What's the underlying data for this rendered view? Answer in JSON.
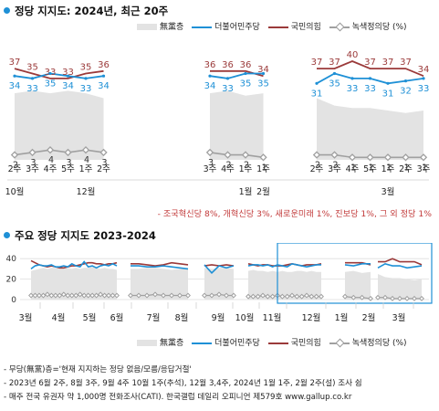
{
  "chart_data": [
    {
      "type": "line",
      "title": "정당 지지도: 2024년, 최근 20주",
      "legend": [
        {
          "name": "無黨층",
          "color": "#e3e3e3",
          "kind": "area"
        },
        {
          "name": "더불어민주당",
          "color": "#1e90d6",
          "kind": "line"
        },
        {
          "name": "국민의힘",
          "color": "#9b3a3a",
          "kind": "line"
        },
        {
          "name": "녹색정의당 (%)",
          "color": "#a0a0a0",
          "kind": "line-diamond"
        }
      ],
      "segments": [
        {
          "x_labels": [
            "2주",
            "3주",
            "4주",
            "5주",
            "1주",
            "2주"
          ],
          "month_labels": [
            {
              "at": 0,
              "text": "10월"
            },
            {
              "at": 4,
              "text": "12월"
            }
          ],
          "ppp": [
            37,
            35,
            33,
            33,
            35,
            36
          ],
          "dem": [
            34,
            33,
            35,
            34,
            33,
            34
          ],
          "green": [
            2,
            3,
            4,
            3,
            4,
            3
          ],
          "nopa": [
            27,
            28,
            27,
            28,
            27,
            25
          ]
        },
        {
          "x_labels": [
            "3주",
            "4주",
            "1주",
            "1주"
          ],
          "month_labels": [
            {
              "at": 2,
              "text": "1월"
            },
            {
              "at": 3,
              "text": "2월"
            }
          ],
          "ppp": [
            36,
            36,
            36,
            34
          ],
          "dem": [
            34,
            33,
            35,
            35
          ],
          "green": [
            3,
            2,
            2,
            1
          ],
          "nopa": [
            27,
            28,
            26,
            27
          ]
        },
        {
          "x_labels": [
            "2주",
            "3주",
            "4주",
            "5주",
            "1주",
            "2주",
            "3주"
          ],
          "month_labels": [
            {
              "at": 4,
              "text": "3월"
            }
          ],
          "ppp": [
            37,
            37,
            40,
            37,
            37,
            37,
            34
          ],
          "dem": [
            31,
            35,
            33,
            33,
            31,
            32,
            33
          ],
          "green": [
            2,
            2,
            1,
            1,
            1,
            1,
            1
          ],
          "nopa": [
            25,
            22,
            21,
            21,
            20,
            19,
            20
          ]
        }
      ],
      "all_x_labels": [
        "2주",
        "3주",
        "4주",
        "5주",
        "1주",
        "2주",
        "3주",
        "4주",
        "1주",
        "2주",
        "3주",
        "4주",
        "1주",
        "2주",
        "3주",
        "4주",
        "5주",
        "1주",
        "2주",
        "3주"
      ],
      "green_labels": [
        "2",
        "3",
        "4",
        "3",
        "4",
        "3",
        "3",
        "2",
        "2",
        "1",
        "2",
        "2",
        "1",
        "1",
        "1",
        "1",
        "1"
      ],
      "ylim": [
        0,
        50
      ],
      "note": "- 조국혁신당 8%, 개혁신당 3%, 새로운미래 1%, 진보당 1%, 그 외 정당 1%"
    },
    {
      "type": "line",
      "title": "주요 정당 지지도 2023-2024",
      "y_ticks": [
        0,
        20,
        40
      ],
      "ylim": [
        0,
        50
      ],
      "x_month_labels": [
        "3월",
        "4월",
        "5월",
        "6월",
        "7월",
        "8월",
        "9월",
        "10월",
        "11월",
        "12월",
        "1월",
        "2월",
        "3월"
      ],
      "segments": [
        {
          "ppp": [
            38,
            36,
            34,
            33,
            32,
            33,
            32,
            31,
            31,
            32,
            33,
            33,
            34,
            35,
            36,
            36,
            35,
            35,
            34,
            35,
            35,
            36
          ],
          "dem": [
            30,
            33,
            34,
            33,
            33,
            34,
            32,
            32,
            33,
            32,
            35,
            33,
            32,
            37,
            32,
            33,
            31,
            33,
            34,
            33,
            35,
            33
          ],
          "nopa": [
            28,
            29,
            30,
            31,
            30,
            31,
            31,
            30,
            31,
            31,
            30,
            31,
            30,
            31,
            31,
            32,
            31,
            30,
            31,
            30,
            30,
            29
          ],
          "green": [
            4,
            4,
            4,
            4,
            5,
            4,
            4,
            4,
            5,
            4,
            4,
            4,
            5,
            4,
            4,
            4,
            4,
            5,
            4,
            4,
            4,
            4
          ]
        },
        {
          "ppp": [
            35,
            35,
            34,
            33,
            34,
            36,
            35,
            34
          ],
          "dem": [
            33,
            33,
            32,
            32,
            33,
            32,
            31,
            30
          ],
          "nopa": [
            30,
            30,
            31,
            31,
            30,
            29,
            30,
            30
          ],
          "green": [
            4,
            4,
            4,
            5,
            4,
            4,
            4,
            4
          ]
        },
        {
          "ppp": [
            33,
            34,
            33,
            34,
            33
          ],
          "dem": [
            34,
            26,
            33,
            31,
            33
          ],
          "nopa": [
            31,
            30,
            31,
            31,
            30
          ],
          "green": [
            4,
            4,
            5,
            4,
            4
          ]
        },
        {
          "ppp": [
            35,
            34,
            33,
            34,
            34,
            33,
            33,
            33,
            34,
            35,
            34,
            33,
            34,
            34,
            34,
            35
          ],
          "dem": [
            33,
            34,
            34,
            33,
            34,
            32,
            34,
            33,
            32,
            35,
            34,
            33,
            32,
            33,
            34,
            34
          ],
          "nopa": [
            28,
            29,
            28,
            28,
            27,
            28,
            27,
            28,
            27,
            27,
            28,
            28,
            27,
            28,
            27,
            27
          ],
          "green": [
            3,
            3,
            3,
            4,
            3,
            3,
            4,
            3,
            3,
            4,
            3,
            3,
            4,
            3,
            3,
            3
          ]
        },
        {
          "ppp": [
            36,
            36,
            36,
            34
          ],
          "dem": [
            34,
            33,
            35,
            35
          ],
          "nopa": [
            27,
            28,
            26,
            27
          ],
          "green": [
            3,
            2,
            2,
            1
          ]
        },
        {
          "ppp": [
            37,
            37,
            40,
            37,
            37,
            37,
            34
          ],
          "dem": [
            31,
            35,
            33,
            33,
            31,
            32,
            33
          ],
          "nopa": [
            25,
            22,
            21,
            21,
            20,
            19,
            20
          ],
          "green": [
            2,
            2,
            1,
            1,
            1,
            1,
            1
          ]
        }
      ]
    }
  ],
  "footer": [
    "- 무당(無黨)층='현재 지지하는 정당 없음/모름/응답거절'",
    "- 2023년 6월 2주, 8월 3주, 9월 4주 10월 1주(추석), 12월 3,4주, 2024년 1월 1주, 2월 2주(설) 조사 쉼",
    "- 매주 전국 유권자 약 1,000명 전화조사(CATI). 한국갤럽 데일리 오피니언 제579호 www.gallup.co.kr"
  ]
}
